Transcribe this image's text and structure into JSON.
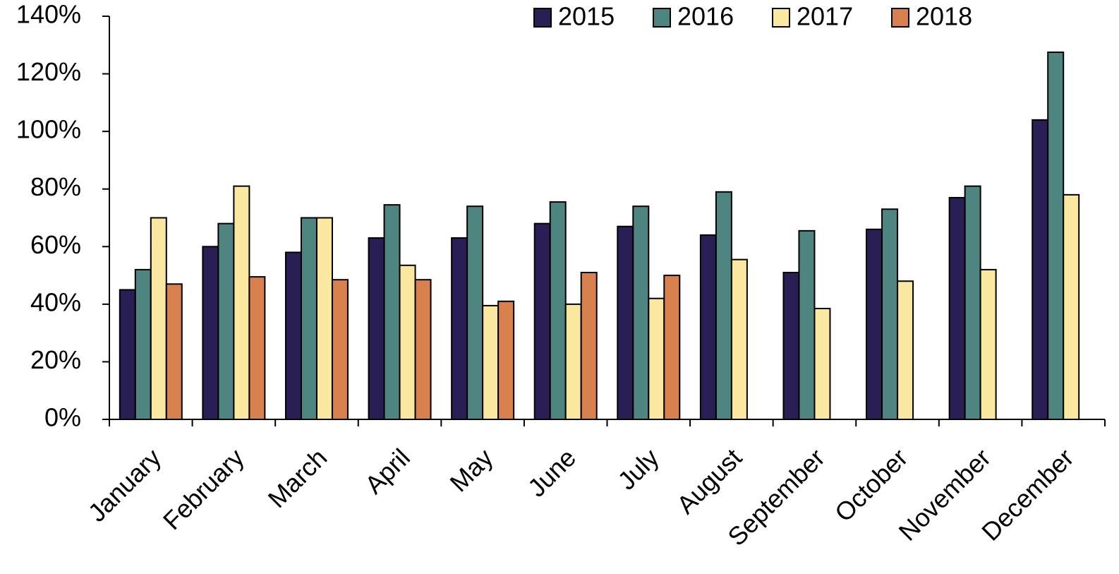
{
  "chart_data": {
    "type": "bar",
    "categories": [
      "January",
      "February",
      "March",
      "April",
      "May",
      "June",
      "July",
      "August",
      "September",
      "October",
      "November",
      "December"
    ],
    "series": [
      {
        "name": "2015",
        "color": "#2a1f55",
        "values": [
          45,
          60,
          58,
          63,
          63,
          68,
          67,
          64,
          51,
          66,
          77,
          104
        ]
      },
      {
        "name": "2016",
        "color": "#4e8580",
        "values": [
          52,
          68,
          70,
          74.5,
          74,
          75.5,
          74,
          79,
          65.5,
          73,
          81,
          127.5
        ]
      },
      {
        "name": "2017",
        "color": "#fbe8a0",
        "values": [
          70,
          81,
          70,
          53.5,
          39.5,
          40,
          42,
          55.5,
          38.5,
          48,
          52,
          78
        ]
      },
      {
        "name": "2018",
        "color": "#d9804f",
        "values": [
          47,
          49.5,
          48.5,
          48.5,
          41,
          51,
          50,
          null,
          null,
          null,
          null,
          null
        ]
      }
    ],
    "ylim": [
      0,
      140
    ],
    "yticks": [
      {
        "value": 0,
        "label": "0%"
      },
      {
        "value": 20,
        "label": "20%"
      },
      {
        "value": 40,
        "label": "40%"
      },
      {
        "value": 60,
        "label": "60%"
      },
      {
        "value": 80,
        "label": "80%"
      },
      {
        "value": 100,
        "label": "100%"
      },
      {
        "value": 120,
        "label": "120%"
      },
      {
        "value": 140,
        "label": "140%"
      }
    ],
    "legend": "top-right"
  }
}
